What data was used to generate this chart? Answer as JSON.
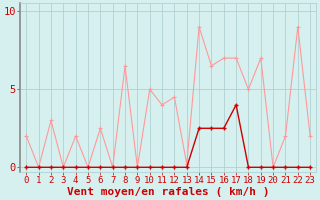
{
  "title": "",
  "xlabel": "Vent moyen/en rafales ( km/h )",
  "ylabel": "",
  "xlim": [
    -0.5,
    23.5
  ],
  "ylim": [
    -0.3,
    10.5
  ],
  "xticks": [
    0,
    1,
    2,
    3,
    4,
    5,
    6,
    7,
    8,
    9,
    10,
    11,
    12,
    13,
    14,
    15,
    16,
    17,
    18,
    19,
    20,
    21,
    22,
    23
  ],
  "yticks": [
    0,
    5,
    10
  ],
  "bg_color": "#d6f0f0",
  "grid_color": "#b0d0d0",
  "rafales_color": "#ff9999",
  "moyen_color": "#cc0000",
  "rafales_data": [
    2,
    0,
    3,
    0,
    2,
    0,
    2.5,
    0,
    6.5,
    0,
    5,
    4,
    4.5,
    0.2,
    9,
    6.5,
    7,
    7,
    5,
    7,
    0,
    2,
    9,
    2
  ],
  "moyen_data": [
    0,
    0,
    0,
    0,
    0,
    0,
    0,
    0,
    0,
    0,
    0,
    0,
    0,
    0,
    2.5,
    2.5,
    2.5,
    4,
    0,
    0,
    0,
    0,
    0,
    0
  ],
  "xlabel_color": "#cc0000",
  "tick_color": "#cc0000",
  "tick_fontsize": 6.5,
  "xlabel_fontsize": 8,
  "left_spine_color": "#888888"
}
